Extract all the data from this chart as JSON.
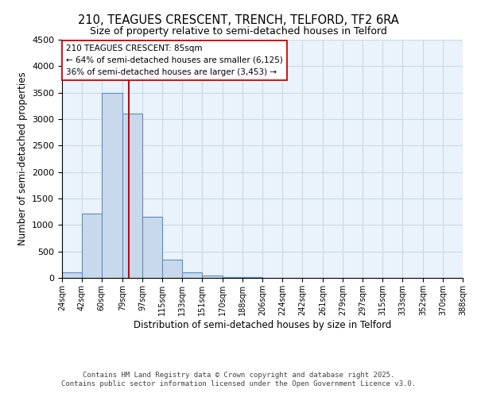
{
  "title_line1": "210, TEAGUES CRESCENT, TRENCH, TELFORD, TF2 6RA",
  "title_line2": "Size of property relative to semi-detached houses in Telford",
  "xlabel": "Distribution of semi-detached houses by size in Telford",
  "ylabel": "Number of semi-detached properties",
  "bin_edges": [
    24,
    42,
    60,
    79,
    97,
    115,
    133,
    151,
    170,
    188,
    206,
    224,
    242,
    261,
    279,
    297,
    315,
    333,
    352,
    370,
    388
  ],
  "bin_heights": [
    100,
    1220,
    3500,
    3100,
    1150,
    350,
    100,
    50,
    20,
    10,
    5,
    3,
    2,
    1,
    1,
    1,
    0,
    0,
    0,
    0
  ],
  "bar_facecolor": "#c9d9ec",
  "bar_edgecolor": "#5a8ec5",
  "bar_linewidth": 0.8,
  "vline_x": 85,
  "vline_color": "#cc0000",
  "vline_linewidth": 1.5,
  "annotation_title": "210 TEAGUES CRESCENT: 85sqm",
  "annotation_line1": "← 64% of semi-detached houses are smaller (6,125)",
  "annotation_line2": "36% of semi-detached houses are larger (3,453) →",
  "annotation_box_edgecolor": "#cc0000",
  "annotation_box_facecolor": "#ffffff",
  "ylim": [
    0,
    4500
  ],
  "yticks": [
    0,
    500,
    1000,
    1500,
    2000,
    2500,
    3000,
    3500,
    4000,
    4500
  ],
  "grid_color": "#c8d8e8",
  "background_color": "#eaf3fb",
  "footer_line1": "Contains HM Land Registry data © Crown copyright and database right 2025.",
  "footer_line2": "Contains public sector information licensed under the Open Government Licence v3.0.",
  "tick_labels": [
    "24sqm",
    "42sqm",
    "60sqm",
    "79sqm",
    "97sqm",
    "115sqm",
    "133sqm",
    "151sqm",
    "170sqm",
    "188sqm",
    "206sqm",
    "224sqm",
    "242sqm",
    "261sqm",
    "279sqm",
    "297sqm",
    "315sqm",
    "333sqm",
    "352sqm",
    "370sqm",
    "388sqm"
  ]
}
